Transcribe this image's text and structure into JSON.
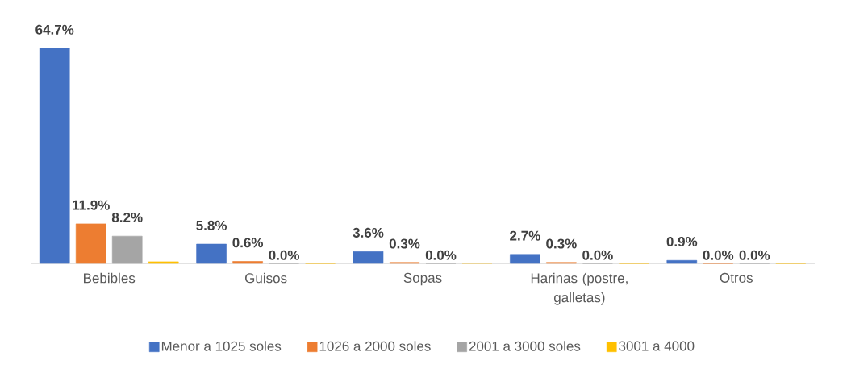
{
  "chart_data": {
    "type": "bar",
    "categories": [
      "Bebibles",
      "Guisos",
      "Sopas",
      "Harinas (postre, galletas)",
      "Otros"
    ],
    "series": [
      {
        "name": "Menor a 1025 soles",
        "color": "#4472c4",
        "values": [
          64.7,
          5.8,
          3.6,
          2.7,
          0.9
        ],
        "value_labels": [
          "64.7%",
          "5.8%",
          "3.6%",
          "2.7%",
          "0.9%"
        ]
      },
      {
        "name": "1026 a 2000 soles",
        "color": "#ed7d31",
        "values": [
          11.9,
          0.6,
          0.3,
          0.3,
          0.0
        ],
        "value_labels": [
          "11.9%",
          "0.6%",
          "0.3%",
          "0.3%",
          "0.0%"
        ]
      },
      {
        "name": "2001 a 3000 soles",
        "color": "#a5a5a5",
        "values": [
          8.2,
          0.0,
          0.0,
          0.0,
          0.0
        ],
        "value_labels": [
          "8.2%",
          "0.0%",
          "0.0%",
          "0.0%",
          "0.0%"
        ]
      },
      {
        "name": "3001 a 4000",
        "color": "#ffc000",
        "values": [
          0.5,
          0.0,
          0.1,
          0.0,
          0.0
        ],
        "value_labels": [
          null,
          null,
          null,
          null,
          null
        ]
      }
    ],
    "legend": "bottom"
  }
}
